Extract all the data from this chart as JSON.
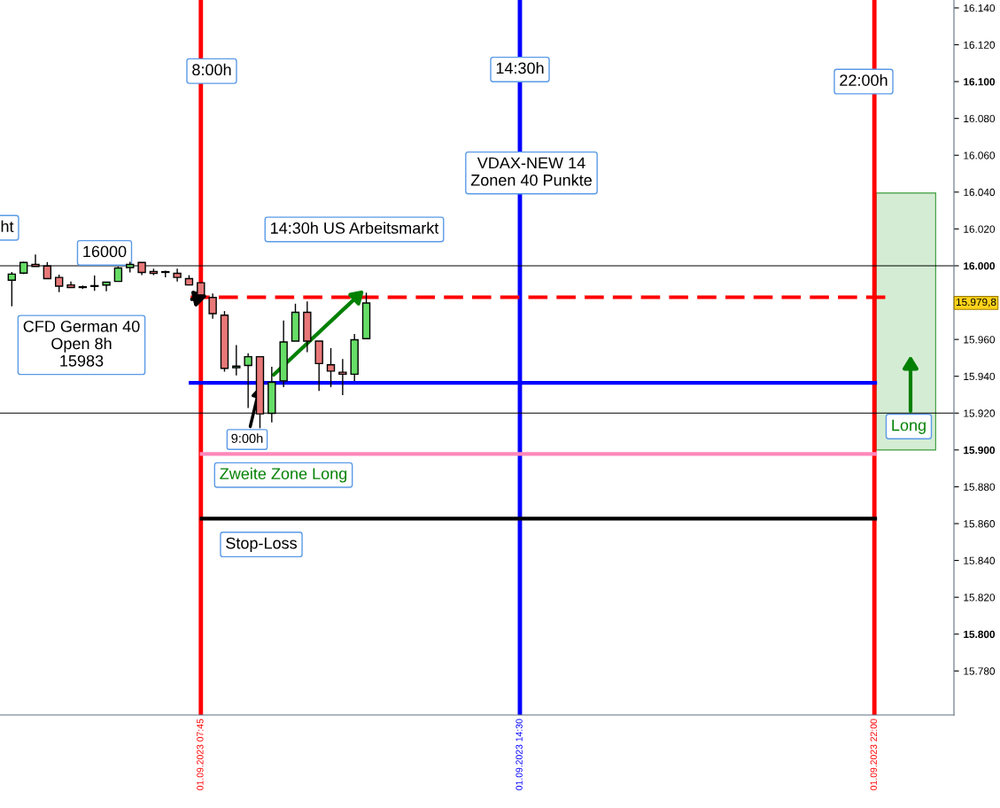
{
  "chart_data": {
    "type": "candlestick",
    "x": [
      "2023-09-01T03:45",
      "2023-09-01T04:00",
      "2023-09-01T04:15",
      "2023-09-01T04:30",
      "2023-09-01T04:45",
      "2023-09-01T05:00",
      "2023-09-01T05:15",
      "2023-09-01T05:30",
      "2023-09-01T05:45",
      "2023-09-01T06:00",
      "2023-09-01T06:15",
      "2023-09-01T06:30",
      "2023-09-01T06:45",
      "2023-09-01T07:00",
      "2023-09-01T07:15",
      "2023-09-01T07:30",
      "2023-09-01T07:45",
      "2023-09-01T08:00",
      "2023-09-01T08:15",
      "2023-09-01T08:30",
      "2023-09-01T08:45",
      "2023-09-01T09:00",
      "2023-09-01T09:15",
      "2023-09-01T09:30",
      "2023-09-01T09:45",
      "2023-09-01T10:00",
      "2023-09-01T10:15",
      "2023-09-01T10:30",
      "2023-09-01T10:45",
      "2023-09-01T11:00",
      "2023-09-01T11:15"
    ],
    "ohlc": [
      [
        15992.2,
        15996.6,
        15978.0,
        15995.5
      ],
      [
        15996.0,
        16002.2,
        15995.5,
        16001.8
      ],
      [
        16000.7,
        16006.1,
        15999.6,
        15999.6
      ],
      [
        15999.9,
        16002.0,
        15993.0,
        15993.0
      ],
      [
        15993.7,
        15995.2,
        15985.7,
        15988.9
      ],
      [
        15989.6,
        15991.5,
        15988.2,
        15988.2
      ],
      [
        15988.4,
        15989.3,
        15987.4,
        15988.2
      ],
      [
        15988.8,
        15994.7,
        15986.4,
        15988.9
      ],
      [
        15989.5,
        15991.1,
        15986.1,
        15991.1
      ],
      [
        15991.5,
        15999.6,
        15991.5,
        15998.8
      ],
      [
        15999.0,
        16002.1,
        15996.4,
        16000.7
      ],
      [
        16001.8,
        16001.8,
        15994.9,
        15996.4
      ],
      [
        15996.9,
        15998.4,
        15994.9,
        15995.9
      ],
      [
        15996.7,
        15997.4,
        15993.7,
        15996.4
      ],
      [
        15995.9,
        15998.4,
        15991.5,
        15993.7
      ],
      [
        15993.0,
        15994.9,
        15989.6,
        15989.6
      ],
      [
        15990.8,
        15990.8,
        15984.2,
        15984.2
      ],
      [
        15982.8,
        15984.9,
        15971.3,
        15974.0
      ],
      [
        15973.2,
        15975.4,
        15942.5,
        15944.3
      ],
      [
        15944.7,
        15956.9,
        15940.4,
        15945.5
      ],
      [
        15945.9,
        15952.5,
        15922.8,
        15950.6
      ],
      [
        15950.6,
        15950.6,
        15911.8,
        15919.6
      ],
      [
        15919.9,
        15945.2,
        15915.0,
        15936.7
      ],
      [
        15937.5,
        15970.3,
        15934.1,
        15958.6
      ],
      [
        15959.1,
        15979.4,
        15959.1,
        15974.7
      ],
      [
        15974.7,
        15980.6,
        15953.1,
        15959.1
      ],
      [
        15959.1,
        15959.1,
        15932.0,
        15946.9
      ],
      [
        15946.2,
        15955.3,
        15934.1,
        15942.8
      ],
      [
        15942.2,
        15949.4,
        15929.7,
        15941.1
      ],
      [
        15941.1,
        15963.0,
        15937.4,
        15959.8
      ],
      [
        15960.4,
        15985.4,
        15960.4,
        15979.8
      ]
    ],
    "colors": [
      "#66dd66",
      "#66dd66",
      "#e87878",
      "#e87878",
      "#e87878",
      "#e87878",
      "#e87878",
      "#66dd66",
      "#66dd66",
      "#66dd66",
      "#66dd66",
      "#e87878",
      "#e87878",
      "#e87878",
      "#e87878",
      "#e87878",
      "#e87878",
      "#e87878",
      "#e87878",
      "#66dd66",
      "#66dd66",
      "#e87878",
      "#66dd66",
      "#66dd66",
      "#66dd66",
      "#e87878",
      "#e87878",
      "#e87878",
      "#e87878",
      "#66dd66",
      "#66dd66"
    ],
    "series": [
      {
        "type": "line",
        "x": [
          "2023-09-01T07:32",
          "2023-09-01T22:14"
        ],
        "values": [
          15982.9,
          15982.9
        ],
        "color": "#ff0000",
        "line_style": "dashed"
      },
      {
        "type": "line",
        "x": [
          "2023-09-01T07:32",
          "2023-09-01T22:01"
        ],
        "values": [
          15936.4,
          15936.4
        ],
        "color": "#0000ff",
        "line_style": "solid"
      },
      {
        "type": "line",
        "x": [
          "2023-09-01T07:46",
          "2023-09-01T22:01"
        ],
        "values": [
          15897.8,
          15897.8
        ],
        "color": "#ff88bb",
        "line_style": "solid"
      },
      {
        "type": "line",
        "x": [
          "2023-09-01T07:46",
          "2023-09-01T22:01"
        ],
        "values": [
          15862.7,
          15862.7
        ],
        "color": "#000000",
        "line_style": "solid"
      },
      {
        "type": "bar",
        "x": [
          "2023-09-01T22:40"
        ],
        "base": [
          15900
        ],
        "values": [
          139.5
        ],
        "color": "#d4ecd4"
      }
    ],
    "xlim": [
      "2023-09-01T03:30",
      "2023-09-01T23:41"
    ],
    "ylim": [
      15756.1,
      16144.3
    ],
    "yticks": [
      {
        "value": 15780,
        "label": "15.780"
      },
      {
        "value": 15800,
        "label": "15.800"
      },
      {
        "value": 15820,
        "label": "15.820"
      },
      {
        "value": 15840,
        "label": "15.840"
      },
      {
        "value": 15860,
        "label": "15.860"
      },
      {
        "value": 15880,
        "label": "15.880"
      },
      {
        "value": 15900,
        "label": "15.900"
      },
      {
        "value": 15920,
        "label": "15.920"
      },
      {
        "value": 15940,
        "label": "15.940"
      },
      {
        "value": 15960,
        "label": "15.960"
      },
      {
        "value": 16000,
        "label": "16.000"
      },
      {
        "value": 16020,
        "label": "16.020"
      },
      {
        "value": 16040,
        "label": "16.040"
      },
      {
        "value": 16060,
        "label": "16.060"
      },
      {
        "value": 16080,
        "label": "16.080"
      },
      {
        "value": 16100,
        "label": "16.100"
      },
      {
        "value": 16120,
        "label": "16.120"
      },
      {
        "value": 16140,
        "label": "16.140"
      }
    ],
    "xticks": [
      {
        "value": "2023-09-01T07:45",
        "label": "01.09.2023 07:45"
      },
      {
        "value": "2023-09-01T14:30",
        "label": "01.09.2023 14:30"
      },
      {
        "value": "2023-09-01T22:00",
        "label": "01.09.2023 22:00"
      }
    ],
    "ref_lines": [
      {
        "axis": "x",
        "value": "2023-09-01T07:45",
        "color": "#ff0000"
      },
      {
        "axis": "x",
        "value": "2023-09-01T14:30",
        "color": "#0000ff"
      },
      {
        "axis": "x",
        "value": "2023-09-01T22:00",
        "color": "#ff0000"
      },
      {
        "axis": "y",
        "value": 16000,
        "color": "#000000"
      },
      {
        "axis": "y",
        "value": 15920,
        "color": "#000000"
      }
    ],
    "annotations": [
      "ht",
      "16000",
      "8:00h",
      "14:30h",
      "22:00h",
      "VDAX-NEW 14\nZonen 40 Punkte",
      "14:30h US Arbeitsmarkt",
      "CFD German 40\nOpen 8h\n15983",
      {
        "text": "9:00h",
        "x": "2023-09-01T09:00",
        "y": 15934.6
      },
      "Zweite Zone Long",
      "Stop-Loss",
      "Long",
      "15.979,8"
    ]
  }
}
